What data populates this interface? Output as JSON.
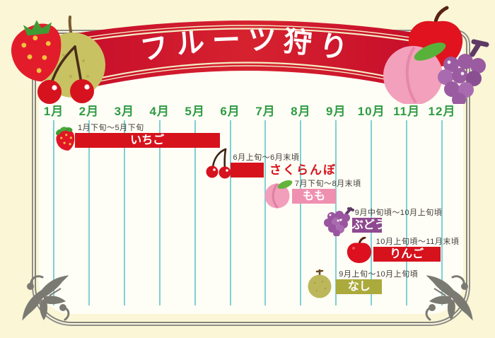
{
  "banner": {
    "title": "フルーツ狩り"
  },
  "chart_data": {
    "type": "bar",
    "subtype": "gantt-season-timeline",
    "title": "フルーツ狩り",
    "x_axis": {
      "unit": "month",
      "range": [
        1,
        13
      ],
      "tick_labels": [
        "1月",
        "2月",
        "3月",
        "4月",
        "5月",
        "6月",
        "7月",
        "8月",
        "9月",
        "10月",
        "11月",
        "12月"
      ]
    },
    "grid": true,
    "gridline_color": "#7fd0d6",
    "month_label_color": "#2e9b43",
    "series": [
      {
        "name": "いちご",
        "fruit": "strawberry",
        "period_label": "1月下旬～5月下旬",
        "start_month": 1.6,
        "end_month": 5.7,
        "color": "#d6121c",
        "text_color": "#ffffff",
        "name_position": "inside"
      },
      {
        "name": "さくらんぼ",
        "fruit": "cherry",
        "period_label": "6月上旬～6月末頃",
        "start_month": 6.0,
        "end_month": 6.95,
        "color": "#d6121c",
        "text_color": "#d6121c",
        "name_position": "right-outside"
      },
      {
        "name": "もも",
        "fruit": "peach",
        "period_label": "7月下旬～8月末頃",
        "start_month": 7.75,
        "end_month": 9.0,
        "color": "#ef90b1",
        "text_color": "#ffffff",
        "name_position": "inside"
      },
      {
        "name": "ぶどう",
        "fruit": "grape",
        "period_label": "9月中旬頃～10月上旬頃",
        "start_month": 9.45,
        "end_month": 10.3,
        "color": "#8e4a90",
        "text_color": "#ffffff",
        "name_position": "inside"
      },
      {
        "name": "りんご",
        "fruit": "apple",
        "period_label": "10月上旬頃～11月末頃",
        "start_month": 10.05,
        "end_month": 11.95,
        "color": "#d6121c",
        "text_color": "#ffffff",
        "name_position": "inside"
      },
      {
        "name": "なし",
        "fruit": "pear",
        "period_label": "9月上旬～10月上旬頃",
        "start_month": 9.0,
        "end_month": 10.3,
        "color": "#abaa3c",
        "text_color": "#ffffff",
        "name_position": "inside"
      }
    ]
  },
  "colors": {
    "background": "#faf6d6",
    "panel": "#fffef6",
    "frame_gray": "#85847c",
    "ribbon_red": "#c8102b",
    "ribbon_dark": "#a60f1f",
    "ribbon_stripe": "#f3ecc3",
    "flourish_gray": "#7b7a72",
    "date_text": "#3f3b37"
  },
  "decorations": {
    "top_left_fruits": [
      "strawberry",
      "pear",
      "cherries"
    ],
    "top_right_fruits": [
      "apple",
      "peach",
      "grapes"
    ],
    "corner_ornaments": [
      "bottom-left-flourish",
      "bottom-right-flourish"
    ]
  }
}
